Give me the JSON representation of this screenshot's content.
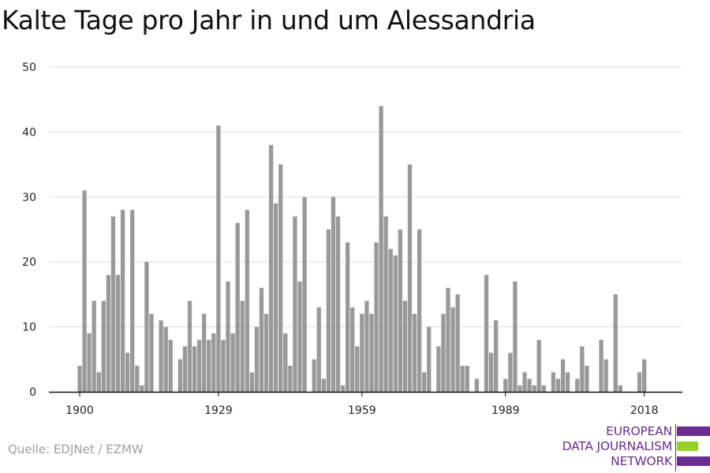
{
  "title": "Kalte Tage pro Jahr in und um Alessandria",
  "source": "Quelle: EDJNet / EZMW",
  "logo": {
    "line1": "EUROPEAN",
    "line2": "DATA JOURNALISM",
    "line3": "NETWORK",
    "colors": {
      "purple": "#6a2c91",
      "green": "#96d12a"
    }
  },
  "chart_data": {
    "type": "bar",
    "title": "Kalte Tage pro Jahr in und um Alessandria",
    "xlabel": "",
    "ylabel": "",
    "ylim": [
      0,
      50
    ],
    "y_ticks": [
      0,
      10,
      20,
      30,
      40,
      50
    ],
    "x_ticks": [
      1900,
      1929,
      1959,
      1989,
      2018
    ],
    "grid": true,
    "bar_color": "#999999",
    "years": [
      1900,
      1901,
      1902,
      1903,
      1904,
      1905,
      1906,
      1907,
      1908,
      1909,
      1910,
      1911,
      1912,
      1913,
      1914,
      1915,
      1916,
      1917,
      1918,
      1919,
      1920,
      1921,
      1922,
      1923,
      1924,
      1925,
      1926,
      1927,
      1928,
      1929,
      1930,
      1931,
      1932,
      1933,
      1934,
      1935,
      1936,
      1937,
      1938,
      1939,
      1940,
      1941,
      1942,
      1943,
      1944,
      1945,
      1946,
      1947,
      1948,
      1949,
      1950,
      1951,
      1952,
      1953,
      1954,
      1955,
      1956,
      1957,
      1958,
      1959,
      1960,
      1961,
      1962,
      1963,
      1964,
      1965,
      1966,
      1967,
      1968,
      1969,
      1970,
      1971,
      1972,
      1973,
      1974,
      1975,
      1976,
      1977,
      1978,
      1979,
      1980,
      1981,
      1982,
      1983,
      1984,
      1985,
      1986,
      1987,
      1988,
      1989,
      1990,
      1991,
      1992,
      1993,
      1994,
      1995,
      1996,
      1997,
      1998,
      1999,
      2000,
      2001,
      2002,
      2003,
      2004,
      2005,
      2006,
      2007,
      2008,
      2009,
      2010,
      2011,
      2012,
      2013,
      2014,
      2015,
      2016,
      2017,
      2018,
      2019
    ],
    "values": [
      4,
      31,
      9,
      14,
      3,
      14,
      18,
      27,
      18,
      28,
      6,
      28,
      4,
      1,
      20,
      12,
      0,
      11,
      10,
      8,
      0,
      5,
      7,
      14,
      7,
      8,
      12,
      8,
      9,
      41,
      8,
      17,
      9,
      26,
      14,
      28,
      3,
      10,
      16,
      12,
      38,
      29,
      35,
      9,
      4,
      27,
      17,
      30,
      0,
      5,
      13,
      2,
      25,
      30,
      27,
      1,
      23,
      13,
      7,
      12,
      14,
      12,
      23,
      44,
      27,
      22,
      21,
      25,
      14,
      35,
      12,
      25,
      3,
      10,
      0,
      7,
      12,
      16,
      13,
      15,
      4,
      4,
      0,
      2,
      0,
      18,
      6,
      11,
      0,
      2,
      6,
      17,
      1,
      3,
      2,
      1,
      8,
      1,
      0,
      3,
      2,
      5,
      3,
      0,
      2,
      7,
      4,
      0,
      0,
      8,
      5,
      0,
      15,
      1,
      0,
      0,
      0,
      3,
      5,
      0
    ]
  }
}
